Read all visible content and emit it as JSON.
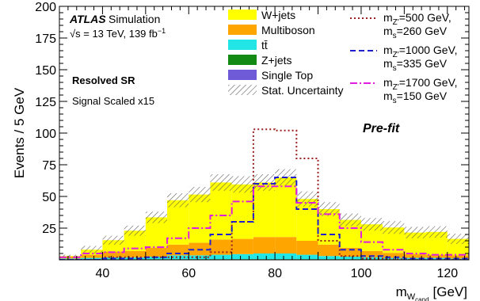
{
  "chart_data": {
    "type": "bar",
    "stacked": true,
    "xlabel_main": "m",
    "xlabel_sub": "W",
    "xlabel_subsub": "cand",
    "xlabel_unit": "[GeV]",
    "ylabel": "Events / 5 GeV",
    "xlim": [
      30,
      125
    ],
    "ylim": [
      0,
      200
    ],
    "xticks": [
      40,
      60,
      80,
      100,
      120
    ],
    "yticks": [
      25,
      50,
      75,
      100,
      125,
      150,
      175,
      200
    ],
    "bin_edges": [
      30,
      35,
      40,
      45,
      50,
      55,
      60,
      65,
      70,
      75,
      80,
      85,
      90,
      95,
      100,
      105,
      110,
      115,
      120,
      125
    ],
    "stack": [
      {
        "name": "Z+jets",
        "color": "#138a13",
        "values": [
          0.5,
          0.5,
          0.5,
          0.5,
          0.5,
          0.5,
          0.5,
          0.5,
          0.5,
          0.5,
          0.5,
          0.5,
          0.5,
          0.5,
          0.5,
          0.5,
          0.5,
          0.5,
          0.5
        ]
      },
      {
        "name": "tt̄",
        "color": "#22e5e5",
        "values": [
          0.5,
          1,
          1.5,
          1.5,
          2,
          3,
          3,
          3.5,
          4,
          4.5,
          4.5,
          3.5,
          2.5,
          2,
          1.5,
          1,
          1,
          1,
          0.5
        ]
      },
      {
        "name": "Multiboson",
        "color": "#ffa500",
        "values": [
          1.5,
          2.5,
          4.5,
          5,
          7,
          8.5,
          10,
          12,
          12,
          13,
          13,
          11,
          9,
          7,
          5,
          4,
          3,
          2.5,
          2.5
        ]
      },
      {
        "name": "Single Top",
        "color": "#6f5bd8",
        "values": [
          0,
          0,
          0,
          0,
          0,
          0,
          0,
          0,
          0,
          0,
          0,
          0,
          0,
          0,
          0,
          0,
          0,
          0,
          0
        ]
      },
      {
        "name": "W+jets",
        "color": "#ffff00",
        "values": [
          0.5,
          4,
          9,
          16,
          24,
          35,
          38,
          45,
          43,
          43,
          47,
          33,
          28,
          22,
          21,
          20,
          17,
          18,
          13
        ]
      }
    ],
    "uncertainty": {
      "name": "Stat. Uncertainty",
      "half_widths": [
        1,
        3,
        3.5,
        4,
        4.5,
        5.5,
        6,
        6.5,
        6.5,
        6.5,
        6.5,
        6,
        5.5,
        5,
        5,
        5,
        4.5,
        4.5,
        4
      ]
    },
    "signals": [
      {
        "name_main": "m",
        "name_sub": "Z'",
        "name_value": "=500 GeV,",
        "name_line2_main": "m",
        "name_line2_sub": "s",
        "name_line2_value": "=260 GeV",
        "color": "#9b1f1f",
        "dash": "2,3",
        "values": [
          0,
          0,
          2,
          2,
          2,
          2,
          2,
          6,
          30,
          103,
          102,
          80,
          15,
          3,
          1,
          0.5,
          0,
          0,
          0
        ]
      },
      {
        "name_main": "m",
        "name_sub": "Z'",
        "name_value": "=1000 GeV,",
        "name_line2_main": "m",
        "name_line2_sub": "s",
        "name_line2_value": "=335 GeV",
        "color": "#1f1fd0",
        "dash": "7,4",
        "values": [
          0,
          0,
          1,
          1,
          2,
          5,
          8,
          20,
          30,
          60,
          65,
          40,
          20,
          8,
          3,
          2,
          1,
          1,
          1
        ]
      },
      {
        "name_main": "m",
        "name_sub": "Z'",
        "name_value": "=1700 GeV,",
        "name_line2_main": "m",
        "name_line2_sub": "s",
        "name_line2_value": "=150 GeV",
        "color": "#e01ee0",
        "dash": "9,3,2,3",
        "values": [
          2,
          5,
          6,
          9,
          10,
          17,
          25,
          35,
          46,
          58,
          58,
          45,
          36,
          25,
          14,
          8,
          5,
          4,
          4
        ]
      }
    ],
    "annotations": {
      "atlas": "ATLAS",
      "simulation": "Simulation",
      "sqrts": "√s = 13 TeV, 139 fb",
      "sqrts_sup": "−1",
      "region": "Resolved SR",
      "scaling": "Signal Scaled x15",
      "stage": "Pre-fit"
    },
    "legend_order": [
      "W+jets",
      "Multiboson",
      "tt̄",
      "Z+jets",
      "Single Top",
      "Stat. Uncertainty"
    ],
    "legend_placement": "top"
  }
}
